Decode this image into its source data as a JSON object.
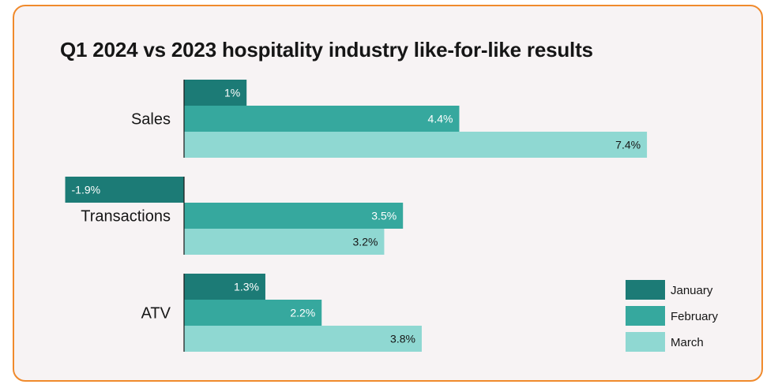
{
  "chart_data": {
    "type": "bar",
    "orientation": "horizontal",
    "title": "Q1 2024 vs 2023 hospitality industry like-for-like results",
    "categories": [
      "Sales",
      "Transactions",
      "ATV"
    ],
    "series": [
      {
        "name": "January",
        "values": [
          1,
          -1.9,
          1.3
        ],
        "labels": [
          "1%",
          "-1.9%",
          "1.3%"
        ],
        "color": "#1c7b76",
        "label_color": "#ffffff"
      },
      {
        "name": "February",
        "values": [
          4.4,
          3.5,
          2.2
        ],
        "labels": [
          "4.4%",
          "3.5%",
          "2.2%"
        ],
        "color": "#36a89e",
        "label_color": "#ffffff"
      },
      {
        "name": "March",
        "values": [
          7.4,
          3.2,
          3.8
        ],
        "labels": [
          "7.4%",
          "3.2%",
          "3.8%"
        ],
        "color": "#8fd8d2",
        "label_color": "#161616"
      }
    ],
    "legend_position": "bottom-right",
    "grid": false,
    "unit": "%"
  },
  "colors": {
    "border": "#f08a2c",
    "background": "#f7f3f4",
    "axis": "#161616"
  }
}
